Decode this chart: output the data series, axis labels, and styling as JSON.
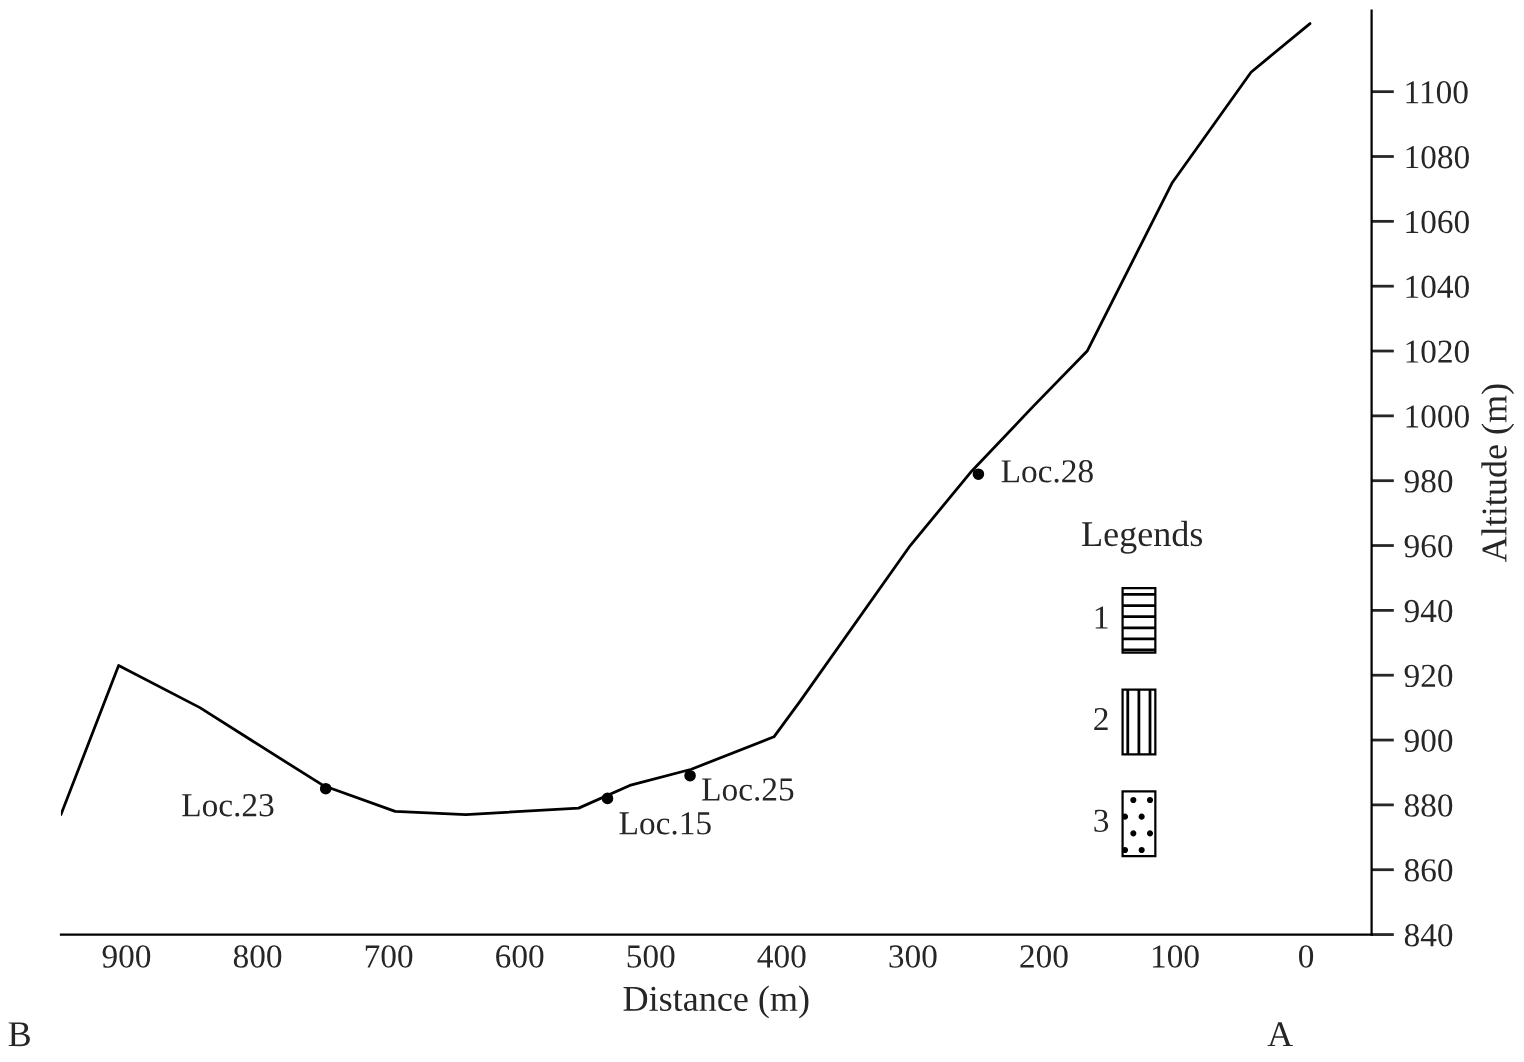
{
  "chart_data": {
    "type": "line",
    "xlabel": "Distance (m)",
    "ylabel": "Altitude (m)",
    "legend_title": "Legends",
    "xlim": [
      950,
      -50
    ],
    "ylim": [
      840,
      1125
    ],
    "xticks": [
      900,
      800,
      700,
      600,
      500,
      400,
      300,
      200,
      100,
      0
    ],
    "yticks": [
      840,
      860,
      880,
      900,
      920,
      940,
      960,
      980,
      1000,
      1020,
      1040,
      1060,
      1080,
      1100
    ],
    "grid": false,
    "legend": false,
    "series": [
      {
        "color": "#000000",
        "x": [
          950,
          906,
          844,
          805,
          750,
          695,
          641,
          555,
          516,
          469,
          406,
          386,
          302,
          255,
          208,
          167,
          102,
          42,
          -3
        ],
        "values": [
          877,
          923,
          910,
          900,
          886,
          878,
          877,
          879,
          886,
          891,
          901,
          912,
          960,
          983,
          1003,
          1020,
          1072,
          1106,
          1121
        ]
      },
      {
        "type": "scatter",
        "color": "#000000",
        "x": [
          748,
          533,
          470,
          250
        ],
        "values": [
          885,
          882,
          889,
          982
        ]
      }
    ],
    "annotations": [
      {
        "text": "Loc.23",
        "x": 748,
        "y": 885
      },
      {
        "text": "Loc.15",
        "x": 533,
        "y": 882
      },
      {
        "text": "Loc.25",
        "x": 470,
        "y": 889
      },
      {
        "text": "Loc.28",
        "x": 250,
        "y": 982
      },
      "B",
      "A",
      "1",
      "2",
      "3"
    ]
  }
}
